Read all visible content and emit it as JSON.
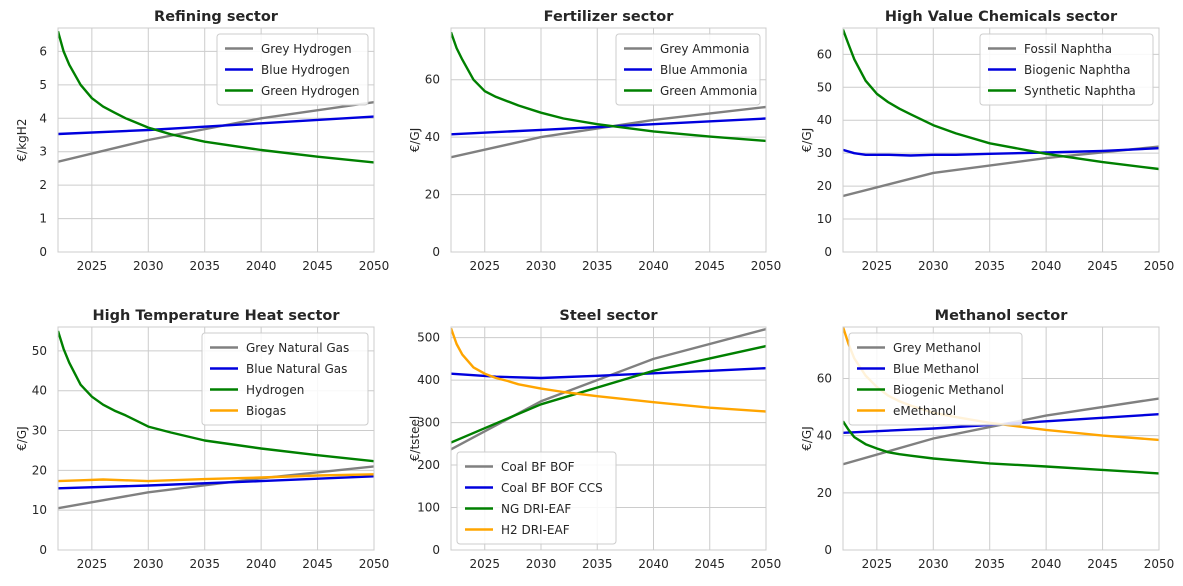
{
  "colors": {
    "grey": "#808080",
    "blue": "#0000dd",
    "green": "#008000",
    "orange": "#ffa500",
    "grid": "#cccccc",
    "frame": "#cccccc",
    "text": "#262626"
  },
  "chart_data": [
    {
      "type": "line",
      "title": "Refining sector",
      "xlabel": "",
      "ylabel": "€/kgH2",
      "xlim": [
        2022,
        2050
      ],
      "ylim": [
        0,
        6.7
      ],
      "xticks": [
        2025,
        2030,
        2035,
        2040,
        2045,
        2050
      ],
      "yticks": [
        0,
        1,
        2,
        3,
        4,
        5,
        6
      ],
      "grid": true,
      "legend": "upper right",
      "series": [
        {
          "name": "Grey Hydrogen",
          "color": "grey",
          "x": [
            2022,
            2030,
            2040,
            2050
          ],
          "y": [
            2.7,
            3.35,
            4.0,
            4.48
          ]
        },
        {
          "name": "Blue Hydrogen",
          "color": "blue",
          "x": [
            2022,
            2030,
            2040,
            2050
          ],
          "y": [
            3.53,
            3.65,
            3.85,
            4.05
          ]
        },
        {
          "name": "Green Hydrogen",
          "color": "green",
          "x": [
            2022,
            2022.5,
            2023,
            2024,
            2025,
            2026,
            2027,
            2028,
            2030,
            2032,
            2035,
            2040,
            2045,
            2050
          ],
          "y": [
            6.6,
            6.0,
            5.6,
            5.0,
            4.6,
            4.35,
            4.17,
            4.0,
            3.72,
            3.52,
            3.3,
            3.05,
            2.85,
            2.68
          ]
        }
      ]
    },
    {
      "type": "line",
      "title": "Fertilizer sector",
      "xlabel": "",
      "ylabel": "€/GJ",
      "xlim": [
        2022,
        2050
      ],
      "ylim": [
        0,
        78
      ],
      "xticks": [
        2025,
        2030,
        2035,
        2040,
        2045,
        2050
      ],
      "yticks": [
        0,
        20,
        40,
        60
      ],
      "grid": true,
      "legend": "upper right",
      "series": [
        {
          "name": "Grey Ammonia",
          "color": "grey",
          "x": [
            2022,
            2030,
            2040,
            2050
          ],
          "y": [
            33,
            40,
            46,
            50.5
          ]
        },
        {
          "name": "Blue Ammonia",
          "color": "blue",
          "x": [
            2022,
            2030,
            2040,
            2050
          ],
          "y": [
            41,
            42.5,
            44.5,
            46.5
          ]
        },
        {
          "name": "Green Ammonia",
          "color": "green",
          "x": [
            2022,
            2022.5,
            2023,
            2024,
            2025,
            2026,
            2027,
            2028,
            2030,
            2032,
            2035,
            2040,
            2045,
            2050
          ],
          "y": [
            76.5,
            71,
            67,
            60,
            56,
            54,
            52.5,
            51,
            48.5,
            46.5,
            44.5,
            42,
            40.2,
            38.7
          ]
        }
      ]
    },
    {
      "type": "line",
      "title": "High Value Chemicals sector",
      "xlabel": "",
      "ylabel": "€/GJ",
      "xlim": [
        2022,
        2050
      ],
      "ylim": [
        0,
        68
      ],
      "xticks": [
        2025,
        2030,
        2035,
        2040,
        2045,
        2050
      ],
      "yticks": [
        0,
        10,
        20,
        30,
        40,
        50,
        60
      ],
      "grid": true,
      "legend": "upper right",
      "series": [
        {
          "name": "Fossil Naphtha",
          "color": "grey",
          "x": [
            2022,
            2030,
            2040,
            2050
          ],
          "y": [
            17,
            24,
            28.5,
            32
          ]
        },
        {
          "name": "Biogenic Naphtha",
          "color": "blue",
          "x": [
            2022,
            2023,
            2024,
            2026,
            2028,
            2030,
            2032,
            2035,
            2040,
            2045,
            2050
          ],
          "y": [
            31,
            30,
            29.5,
            29.5,
            29.3,
            29.5,
            29.5,
            29.8,
            30.2,
            30.7,
            31.5
          ]
        },
        {
          "name": "Synthetic Naphtha",
          "color": "green",
          "x": [
            2022,
            2022.5,
            2023,
            2024,
            2025,
            2026,
            2027,
            2028,
            2030,
            2032,
            2035,
            2040,
            2045,
            2050
          ],
          "y": [
            67.5,
            63,
            58.5,
            52,
            48,
            45.5,
            43.5,
            41.8,
            38.5,
            36,
            33,
            29.8,
            27.3,
            25.2
          ]
        }
      ]
    },
    {
      "type": "line",
      "title": "High Temperature Heat sector",
      "xlabel": "",
      "ylabel": "€/GJ",
      "xlim": [
        2022,
        2050
      ],
      "ylim": [
        0,
        56
      ],
      "xticks": [
        2025,
        2030,
        2035,
        2040,
        2045,
        2050
      ],
      "yticks": [
        0,
        10,
        20,
        30,
        40,
        50
      ],
      "grid": true,
      "legend": "upper right",
      "series": [
        {
          "name": "Grey Natural Gas",
          "color": "grey",
          "x": [
            2022,
            2030,
            2040,
            2050
          ],
          "y": [
            10.5,
            14.5,
            18,
            21
          ]
        },
        {
          "name": "Blue Natural Gas",
          "color": "blue",
          "x": [
            2022,
            2030,
            2040,
            2050
          ],
          "y": [
            15.5,
            16.2,
            17.3,
            18.5
          ]
        },
        {
          "name": "Hydrogen",
          "color": "green",
          "x": [
            2022,
            2022.5,
            2023,
            2024,
            2025,
            2026,
            2027,
            2028,
            2030,
            2032,
            2035,
            2040,
            2045,
            2050
          ],
          "y": [
            55,
            50.5,
            47,
            41.5,
            38.5,
            36.5,
            35,
            33.8,
            31,
            29.5,
            27.5,
            25.5,
            23.8,
            22.3
          ]
        },
        {
          "name": "Biogas",
          "color": "orange",
          "x": [
            2022,
            2024,
            2026,
            2028,
            2030,
            2035,
            2040,
            2045,
            2050
          ],
          "y": [
            17.3,
            17.5,
            17.7,
            17.5,
            17.3,
            17.8,
            18.2,
            18.7,
            19.0
          ]
        }
      ]
    },
    {
      "type": "line",
      "title": "Steel sector",
      "xlabel": "",
      "ylabel": "€/tsteel",
      "xlim": [
        2022,
        2050
      ],
      "ylim": [
        0,
        525
      ],
      "xticks": [
        2025,
        2030,
        2035,
        2040,
        2045,
        2050
      ],
      "yticks": [
        0,
        100,
        200,
        300,
        400,
        500
      ],
      "grid": true,
      "legend": "lower left",
      "series": [
        {
          "name": "Coal BF BOF",
          "color": "grey",
          "x": [
            2022,
            2030,
            2040,
            2050
          ],
          "y": [
            237,
            350,
            450,
            520
          ]
        },
        {
          "name": "Coal BF BOF CCS",
          "color": "blue",
          "x": [
            2022,
            2026,
            2030,
            2035,
            2040,
            2045,
            2050
          ],
          "y": [
            415,
            408,
            405,
            410,
            416,
            422,
            428
          ]
        },
        {
          "name": "NG DRI-EAF",
          "color": "green",
          "x": [
            2022,
            2030,
            2040,
            2050
          ],
          "y": [
            253,
            343,
            422,
            480
          ]
        },
        {
          "name": "H2 DRI-EAF",
          "color": "orange",
          "x": [
            2022,
            2022.5,
            2023,
            2024,
            2025,
            2026,
            2027,
            2028,
            2030,
            2032,
            2035,
            2040,
            2045,
            2050
          ],
          "y": [
            522,
            485,
            460,
            430,
            415,
            405,
            398,
            390,
            380,
            372,
            362,
            348,
            335,
            326
          ]
        }
      ]
    },
    {
      "type": "line",
      "title": "Methanol sector",
      "xlabel": "",
      "ylabel": "€/GJ",
      "xlim": [
        2022,
        2050
      ],
      "ylim": [
        0,
        78
      ],
      "xticks": [
        2025,
        2030,
        2035,
        2040,
        2045,
        2050
      ],
      "yticks": [
        0,
        20,
        40,
        60
      ],
      "grid": true,
      "legend": "upper left",
      "series": [
        {
          "name": "Grey Methanol",
          "color": "grey",
          "x": [
            2022,
            2030,
            2040,
            2050
          ],
          "y": [
            30,
            39,
            47,
            53
          ]
        },
        {
          "name": "Blue Methanol",
          "color": "blue",
          "x": [
            2022,
            2030,
            2040,
            2050
          ],
          "y": [
            41,
            42.5,
            45,
            47.5
          ]
        },
        {
          "name": "Biogenic Methanol",
          "color": "green",
          "x": [
            2022,
            2022.5,
            2023,
            2024,
            2025,
            2026,
            2027,
            2028,
            2030,
            2035,
            2040,
            2045,
            2050
          ],
          "y": [
            45,
            42,
            39.5,
            37,
            35.5,
            34.2,
            33.5,
            33,
            32,
            30.3,
            29.2,
            28,
            26.8
          ]
        },
        {
          "name": "eMethanol",
          "color": "orange",
          "x": [
            2022,
            2022.5,
            2023,
            2024,
            2025,
            2026,
            2027,
            2028,
            2030,
            2032,
            2035,
            2040,
            2045,
            2050
          ],
          "y": [
            78,
            72,
            67,
            61,
            57,
            54,
            52,
            50.5,
            48,
            46.5,
            44.5,
            42,
            40,
            38.5
          ]
        }
      ]
    }
  ]
}
